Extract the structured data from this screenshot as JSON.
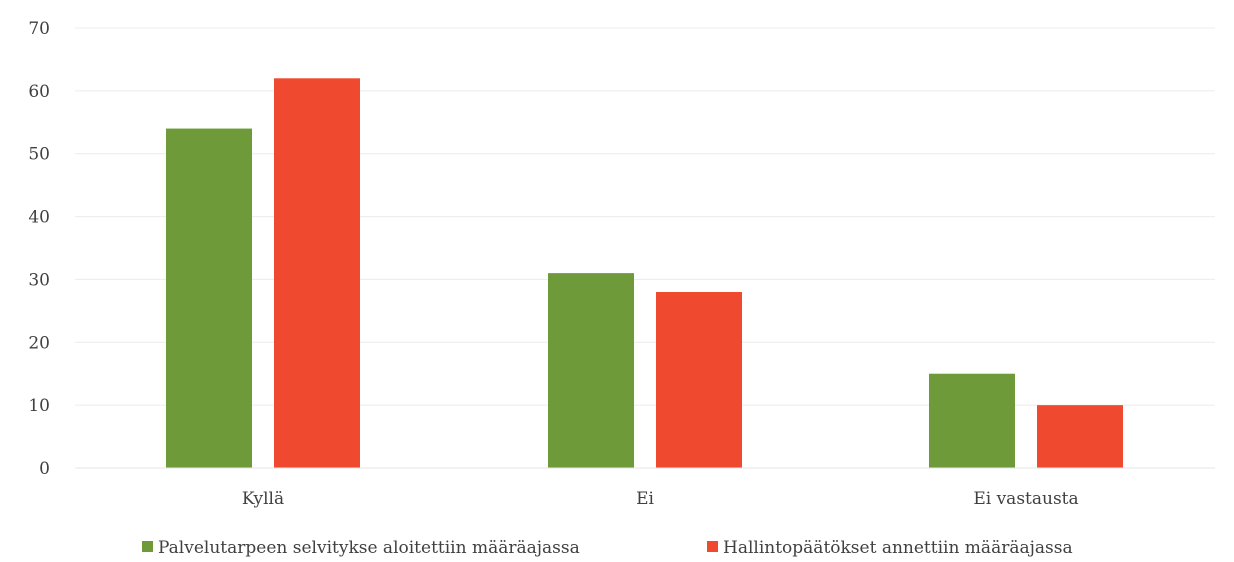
{
  "chart_data": {
    "type": "bar",
    "title": "",
    "xlabel": "",
    "ylabel": "",
    "categories": [
      "Kyllä",
      "Ei",
      "Ei vastausta"
    ],
    "series": [
      {
        "name": "Palvelutarpeen selvitykse aloitettiin määräajassa",
        "values": [
          54,
          31,
          15
        ],
        "color": "#6e9a3a"
      },
      {
        "name": "Hallintopäätökset annettiin määräajassa",
        "values": [
          62,
          28,
          10
        ],
        "color": "#ef4a2f"
      }
    ],
    "ylim": [
      0,
      70
    ],
    "yticks": [
      0,
      10,
      20,
      30,
      40,
      50,
      60,
      70
    ],
    "grid": true,
    "legend_position": "bottom"
  }
}
